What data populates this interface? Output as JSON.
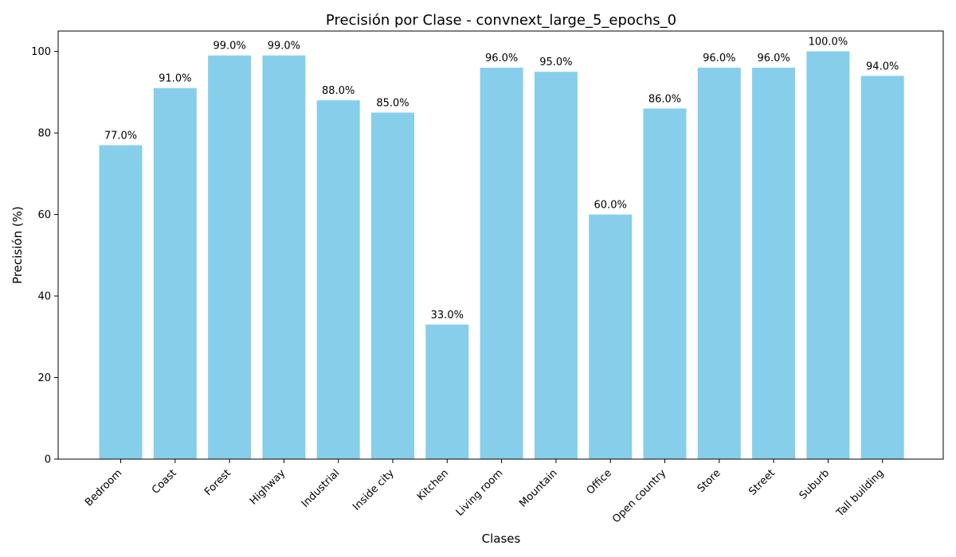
{
  "chart_data": {
    "type": "bar",
    "title": "Precisión por Clase - convnext_large_5_epochs_0",
    "xlabel": "Clases",
    "ylabel": "Precisión (%)",
    "categories": [
      "Bedroom",
      "Coast",
      "Forest",
      "Highway",
      "Industrial",
      "Inside city",
      "Kitchen",
      "Living room",
      "Mountain",
      "Office",
      "Open country",
      "Store",
      "Street",
      "Suburb",
      "Tall building"
    ],
    "values": [
      77.0,
      91.0,
      99.0,
      99.0,
      88.0,
      85.0,
      33.0,
      96.0,
      95.0,
      60.0,
      86.0,
      96.0,
      96.0,
      100.0,
      94.0
    ],
    "value_labels": [
      "77.0%",
      "91.0%",
      "99.0%",
      "99.0%",
      "88.0%",
      "85.0%",
      "33.0%",
      "96.0%",
      "95.0%",
      "60.0%",
      "86.0%",
      "96.0%",
      "96.0%",
      "100.0%",
      "94.0%"
    ],
    "yticks": [
      0,
      20,
      40,
      60,
      80,
      100
    ],
    "ylim": [
      0,
      105
    ],
    "bar_color": "#87CEEB",
    "grid": false,
    "legend": false
  }
}
